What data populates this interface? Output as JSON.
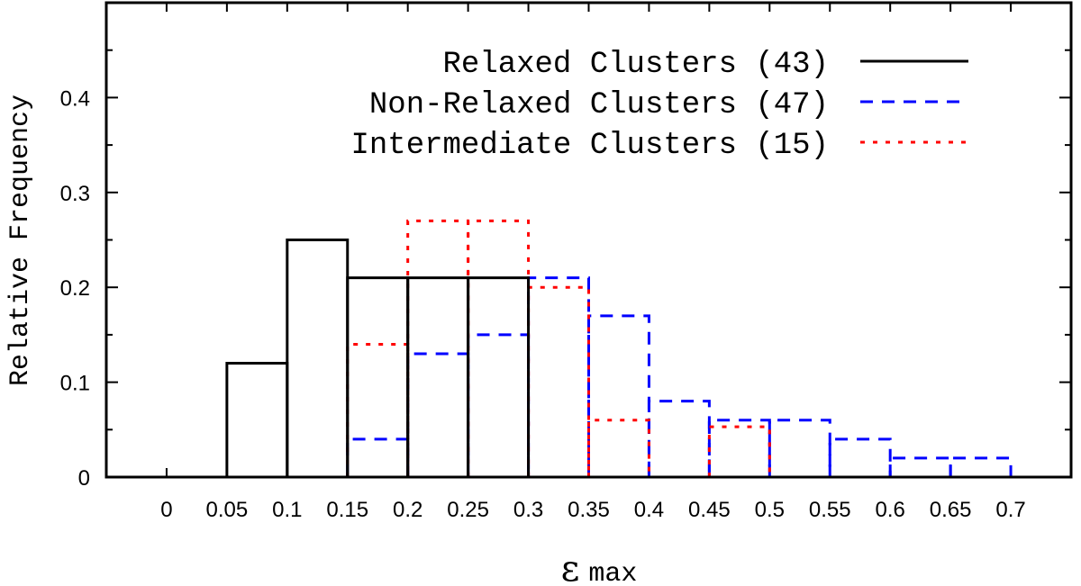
{
  "chart_data": {
    "type": "histogram",
    "xlabel": "ε",
    "xlabel_suffix": "max",
    "ylabel": "Relative Frequency",
    "xlim": [
      -0.05,
      0.75
    ],
    "ylim": [
      0,
      0.5
    ],
    "x_ticks": [
      "0",
      "0.05",
      "0.1",
      "0.15",
      "0.2",
      "0.25",
      "0.3",
      "0.35",
      "0.4",
      "0.45",
      "0.5",
      "0.55",
      "0.6",
      "0.65",
      "0.7"
    ],
    "y_ticks": [
      "0",
      "0.1",
      "0.2",
      "0.3",
      "0.4"
    ],
    "legend_position": "top-right",
    "series": [
      {
        "name": "Relaxed Clusters",
        "count_label": "(43)",
        "style": "solid",
        "color": "#000000",
        "bins": [
          {
            "x0": 0.05,
            "x1": 0.1,
            "value": 0.12
          },
          {
            "x0": 0.1,
            "x1": 0.15,
            "value": 0.25
          },
          {
            "x0": 0.15,
            "x1": 0.2,
            "value": 0.21
          },
          {
            "x0": 0.2,
            "x1": 0.25,
            "value": 0.21
          },
          {
            "x0": 0.25,
            "x1": 0.3,
            "value": 0.21
          }
        ]
      },
      {
        "name": "Non-Relaxed Clusters",
        "count_label": "(47)",
        "style": "dashed",
        "color": "#0000ff",
        "bins": [
          {
            "x0": 0.15,
            "x1": 0.2,
            "value": 0.04
          },
          {
            "x0": 0.2,
            "x1": 0.25,
            "value": 0.13
          },
          {
            "x0": 0.25,
            "x1": 0.3,
            "value": 0.15
          },
          {
            "x0": 0.3,
            "x1": 0.35,
            "value": 0.21
          },
          {
            "x0": 0.35,
            "x1": 0.4,
            "value": 0.17
          },
          {
            "x0": 0.4,
            "x1": 0.45,
            "value": 0.08
          },
          {
            "x0": 0.45,
            "x1": 0.5,
            "value": 0.06
          },
          {
            "x0": 0.5,
            "x1": 0.55,
            "value": 0.06
          },
          {
            "x0": 0.55,
            "x1": 0.6,
            "value": 0.04
          },
          {
            "x0": 0.6,
            "x1": 0.65,
            "value": 0.02
          },
          {
            "x0": 0.65,
            "x1": 0.7,
            "value": 0.02
          }
        ]
      },
      {
        "name": "Intermediate Clusters",
        "count_label": "(15)",
        "style": "dotted",
        "color": "#ff0000",
        "bins": [
          {
            "x0": 0.15,
            "x1": 0.2,
            "value": 0.14
          },
          {
            "x0": 0.2,
            "x1": 0.25,
            "value": 0.27
          },
          {
            "x0": 0.25,
            "x1": 0.3,
            "value": 0.27
          },
          {
            "x0": 0.3,
            "x1": 0.35,
            "value": 0.2
          },
          {
            "x0": 0.35,
            "x1": 0.4,
            "value": 0.06
          },
          {
            "x0": 0.45,
            "x1": 0.5,
            "value": 0.053
          }
        ]
      }
    ]
  }
}
